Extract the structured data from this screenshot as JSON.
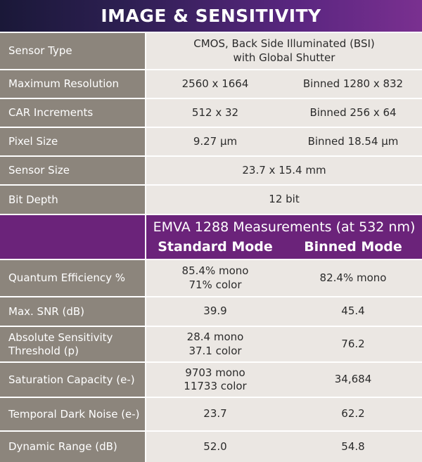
{
  "title": "IMAGE & SENSITIVITY",
  "rows": [
    {
      "label": "Sensor Type",
      "value": "CMOS, Back Side Illuminated (BSI)",
      "value2": "with Global Shutter"
    },
    {
      "label": "Maximum Resolution",
      "standard": "2560 x 1664",
      "binned": "Binned  1280 x 832"
    },
    {
      "label": "CAR Increments",
      "standard": "512 x 32",
      "binned": "Binned  256 x 64"
    },
    {
      "label": "Pixel Size",
      "standard": "9.27 μm",
      "binned": "Binned  18.54  μm"
    },
    {
      "label": "Sensor Size",
      "value": "23.7 x 15.4 mm"
    },
    {
      "label": "Bit Depth",
      "value": "12 bit"
    }
  ],
  "emva": {
    "title": "EMVA 1288 Measurements (at 532 nm)",
    "standard_mode": "Standard Mode",
    "binned_mode": "Binned Mode"
  },
  "measurements": [
    {
      "label": "Quantum Efficiency %",
      "standard": [
        "85.4% mono",
        "71% color"
      ],
      "binned": "82.4% mono"
    },
    {
      "label": "Max. SNR (dB)",
      "standard": [
        "39.9"
      ],
      "binned": "45.4"
    },
    {
      "label": [
        "Absolute Sensitivity",
        "Threshold (p)"
      ],
      "standard": [
        "28.4 mono",
        "37.1 color"
      ],
      "binned": "76.2"
    },
    {
      "label": "Saturation Capacity (e-)",
      "standard": [
        "9703 mono",
        "11733 color"
      ],
      "binned": "34,684"
    },
    {
      "label": "Temporal Dark Noise (e-)",
      "standard": [
        "23.7"
      ],
      "binned": "62.2"
    },
    {
      "label": "Dynamic Range (dB)",
      "standard": [
        "52.0"
      ],
      "binned": "54.8"
    }
  ]
}
